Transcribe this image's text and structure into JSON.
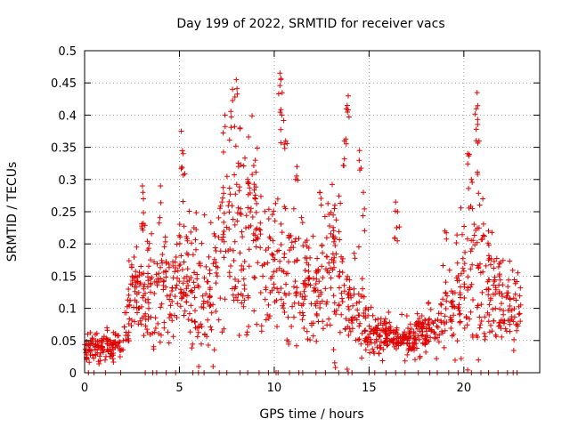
{
  "chart_data": {
    "type": "scatter",
    "title": "Day 199 of 2022, SRMTID for receiver vacs",
    "xlabel": "GPS time / hours",
    "ylabel": "SRMTID / TECUs",
    "xlim": [
      0,
      24
    ],
    "ylim": [
      0,
      0.5
    ],
    "xticks": [
      0,
      5,
      10,
      15,
      20
    ],
    "xtick_labels": [
      "0",
      "5",
      "10",
      "15",
      "20"
    ],
    "yticks": [
      0,
      0.05,
      0.1,
      0.15,
      0.2,
      0.25,
      0.3,
      0.35,
      0.4,
      0.45,
      0.5
    ],
    "ytick_labels": [
      "0",
      "0.05",
      "0.1",
      "0.15",
      "0.2",
      "0.25",
      "0.3",
      "0.35",
      "0.4",
      "0.45",
      "0.5"
    ],
    "grid": true,
    "marker": "+",
    "series": [
      {
        "name": "SRMTID",
        "color": "#e00000",
        "envelope_x": [
          0,
          0.5,
          1,
          1.5,
          2,
          2.3,
          2.5,
          3,
          3.5,
          4,
          4.5,
          5,
          5.5,
          6,
          6.5,
          7,
          7.5,
          8,
          8.5,
          9,
          9.5,
          10,
          10.5,
          11,
          11.5,
          12,
          12.5,
          13,
          13.5,
          14,
          14.5,
          15,
          15.5,
          16,
          16.5,
          17,
          17.5,
          18,
          18.5,
          19,
          19.5,
          20,
          20.5,
          21,
          21.5,
          22,
          22.5,
          23
        ],
        "envelope_mean": [
          0.035,
          0.038,
          0.04,
          0.04,
          0.04,
          0.08,
          0.12,
          0.13,
          0.13,
          0.13,
          0.14,
          0.16,
          0.15,
          0.12,
          0.12,
          0.15,
          0.2,
          0.22,
          0.2,
          0.22,
          0.14,
          0.17,
          0.14,
          0.13,
          0.14,
          0.13,
          0.14,
          0.15,
          0.13,
          0.1,
          0.09,
          0.06,
          0.055,
          0.055,
          0.055,
          0.05,
          0.055,
          0.06,
          0.07,
          0.1,
          0.11,
          0.13,
          0.15,
          0.12,
          0.12,
          0.1,
          0.1,
          0.08
        ],
        "envelope_spread": [
          0.012,
          0.012,
          0.012,
          0.012,
          0.012,
          0.03,
          0.03,
          0.035,
          0.04,
          0.04,
          0.04,
          0.045,
          0.045,
          0.045,
          0.04,
          0.05,
          0.065,
          0.075,
          0.07,
          0.065,
          0.05,
          0.055,
          0.05,
          0.045,
          0.045,
          0.045,
          0.045,
          0.05,
          0.05,
          0.04,
          0.035,
          0.015,
          0.015,
          0.015,
          0.015,
          0.015,
          0.015,
          0.015,
          0.02,
          0.03,
          0.04,
          0.05,
          0.06,
          0.04,
          0.035,
          0.03,
          0.03,
          0.025
        ],
        "spikes": [
          {
            "x": 3.05,
            "y": 0.29
          },
          {
            "x": 3.1,
            "y": 0.27
          },
          {
            "x": 4.0,
            "y": 0.29
          },
          {
            "x": 5.1,
            "y": 0.375
          },
          {
            "x": 5.2,
            "y": 0.34
          },
          {
            "x": 7.4,
            "y": 0.4
          },
          {
            "x": 7.8,
            "y": 0.44
          },
          {
            "x": 8.0,
            "y": 0.455
          },
          {
            "x": 8.2,
            "y": 0.38
          },
          {
            "x": 8.6,
            "y": 0.3
          },
          {
            "x": 9.0,
            "y": 0.33
          },
          {
            "x": 10.3,
            "y": 0.465
          },
          {
            "x": 10.35,
            "y": 0.455
          },
          {
            "x": 10.4,
            "y": 0.4
          },
          {
            "x": 10.6,
            "y": 0.36
          },
          {
            "x": 11.2,
            "y": 0.32
          },
          {
            "x": 12.4,
            "y": 0.28
          },
          {
            "x": 13.2,
            "y": 0.26
          },
          {
            "x": 13.9,
            "y": 0.43
          },
          {
            "x": 13.8,
            "y": 0.41
          },
          {
            "x": 13.7,
            "y": 0.36
          },
          {
            "x": 14.5,
            "y": 0.345
          },
          {
            "x": 14.7,
            "y": 0.28
          },
          {
            "x": 16.4,
            "y": 0.265
          },
          {
            "x": 16.5,
            "y": 0.25
          },
          {
            "x": 19.0,
            "y": 0.22
          },
          {
            "x": 20.2,
            "y": 0.34
          },
          {
            "x": 20.4,
            "y": 0.3
          },
          {
            "x": 20.7,
            "y": 0.435
          },
          {
            "x": 20.65,
            "y": 0.41
          },
          {
            "x": 20.8,
            "y": 0.36
          },
          {
            "x": 21.0,
            "y": 0.27
          },
          {
            "x": 21.3,
            "y": 0.22
          }
        ],
        "zero_points_x": [
          0.2,
          0.5,
          1.1,
          1.9,
          3.2,
          3.6,
          3.8,
          4.3,
          4.8,
          5.7,
          6.0,
          6.3,
          7.1,
          7.5,
          8.2,
          8.6,
          9.2,
          9.7,
          10.1,
          10.2,
          10.8,
          11.3,
          11.5,
          12.2,
          12.7,
          13.4,
          13.9,
          14.1,
          15.0,
          15.3,
          15.9,
          16.4,
          16.9,
          17.6,
          18.2,
          18.6,
          19.2,
          19.7,
          20.4,
          20.9,
          21.3,
          21.8,
          22.3,
          22.6,
          22.8
        ]
      }
    ]
  }
}
